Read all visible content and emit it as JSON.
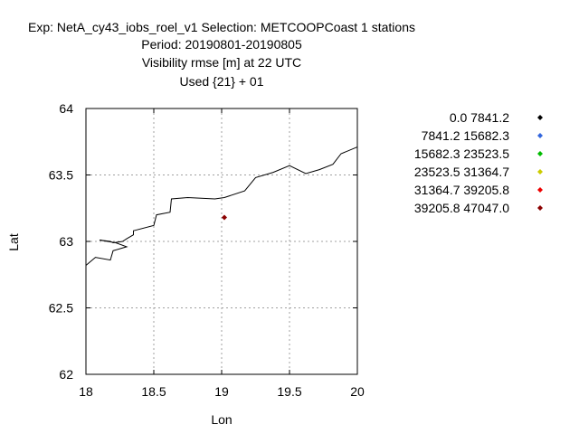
{
  "chart_data": {
    "type": "scatter",
    "title_lines": [
      "Exp: NetA_cy43_iobs_roel_v1   Selection: METCOOPCoast      1 stations",
      "Period: 20190801-20190805",
      "Visibility rmse [m] at  22 UTC",
      "Used {21} + 01"
    ],
    "xlabel": "Lon",
    "ylabel": "Lat",
    "xlim": [
      18,
      20
    ],
    "ylim": [
      62,
      64
    ],
    "x_ticks": [
      18,
      18.5,
      19,
      19.5,
      20
    ],
    "x_tick_labels": [
      "18",
      "18.5",
      "19",
      "19.5",
      "20"
    ],
    "y_ticks": [
      62,
      62.5,
      63,
      63.5,
      64
    ],
    "y_tick_labels": [
      "62",
      "62.5",
      "63",
      "63.5",
      "64"
    ],
    "grid": true,
    "legend_position": "right",
    "legend": [
      {
        "label": "0.0 7841.2",
        "color": "#000000"
      },
      {
        "label": "7841.2 15682.3",
        "color": "#3366dd"
      },
      {
        "label": "15682.3 23523.5",
        "color": "#00bb00"
      },
      {
        "label": "23523.5 31364.7",
        "color": "#cccc00"
      },
      {
        "label": "31364.7 39205.8",
        "color": "#ee0000"
      },
      {
        "label": "39205.8 47047.0",
        "color": "#8b0000"
      }
    ],
    "points": [
      {
        "lon": 19.02,
        "lat": 63.18,
        "class_index": 5
      }
    ],
    "coastline": [
      [
        18.0,
        62.82
      ],
      [
        18.07,
        62.88
      ],
      [
        18.18,
        62.86
      ],
      [
        18.2,
        62.93
      ],
      [
        18.3,
        62.96
      ],
      [
        18.22,
        62.99
      ],
      [
        18.1,
        63.01
      ],
      [
        18.18,
        63.0
      ],
      [
        18.2,
        62.99
      ],
      [
        18.27,
        63.0
      ],
      [
        18.3,
        63.02
      ],
      [
        18.35,
        63.05
      ],
      [
        18.35,
        63.08
      ],
      [
        18.5,
        63.12
      ],
      [
        18.52,
        63.2
      ],
      [
        18.62,
        63.22
      ],
      [
        18.63,
        63.32
      ],
      [
        18.75,
        63.33
      ],
      [
        18.95,
        63.32
      ],
      [
        19.02,
        63.33
      ],
      [
        19.17,
        63.38
      ],
      [
        19.25,
        63.48
      ],
      [
        19.38,
        63.52
      ],
      [
        19.5,
        63.57
      ],
      [
        19.62,
        63.51
      ],
      [
        19.72,
        63.54
      ],
      [
        19.82,
        63.58
      ],
      [
        19.88,
        63.66
      ],
      [
        20.0,
        63.71
      ]
    ]
  }
}
